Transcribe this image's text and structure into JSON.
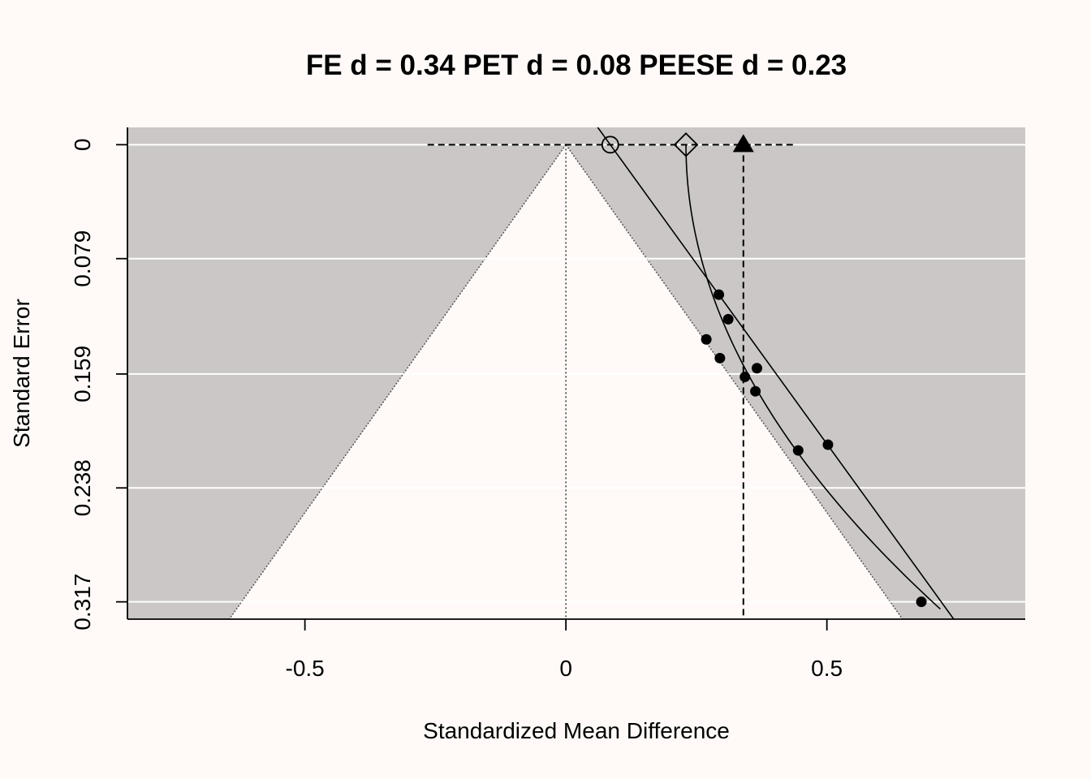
{
  "chart_data": {
    "type": "scatter",
    "title": "FE d = 0.34 PET d = 0.08 PEESE d = 0.23",
    "xlabel": "Standardized Mean Difference",
    "ylabel": "Standard Error",
    "xlim": [
      -0.84,
      0.88
    ],
    "ylim": [
      0.329,
      -0.012
    ],
    "y_reversed": true,
    "x_ticks": [
      {
        "value": -0.5,
        "label": "-0.5"
      },
      {
        "value": 0,
        "label": "0"
      },
      {
        "value": 0.5,
        "label": "0.5"
      }
    ],
    "y_ticks": [
      {
        "value": 0,
        "label": "0"
      },
      {
        "value": 0.079,
        "label": "0.079"
      },
      {
        "value": 0.159,
        "label": "0.159"
      },
      {
        "value": 0.238,
        "label": "0.238"
      },
      {
        "value": 0.317,
        "label": "0.317"
      }
    ],
    "gridlines_horizontal": true,
    "funnel_center": 0,
    "funnel_z": 1.96,
    "points": [
      {
        "x": 0.293,
        "y": 0.104
      },
      {
        "x": 0.311,
        "y": 0.121
      },
      {
        "x": 0.269,
        "y": 0.135
      },
      {
        "x": 0.295,
        "y": 0.148
      },
      {
        "x": 0.366,
        "y": 0.155
      },
      {
        "x": 0.343,
        "y": 0.161
      },
      {
        "x": 0.363,
        "y": 0.171
      },
      {
        "x": 0.502,
        "y": 0.208
      },
      {
        "x": 0.445,
        "y": 0.212
      },
      {
        "x": 0.681,
        "y": 0.317
      }
    ],
    "estimates": {
      "fe": 0.34,
      "pet": 0.085,
      "peese": 0.23
    },
    "pet_ci": [
      -0.265,
      0.435
    ],
    "pet_line": {
      "intercept": 0.085,
      "slope": 2.0
    },
    "peese_curve": {
      "intercept": 0.23,
      "coef": 4.7
    }
  }
}
